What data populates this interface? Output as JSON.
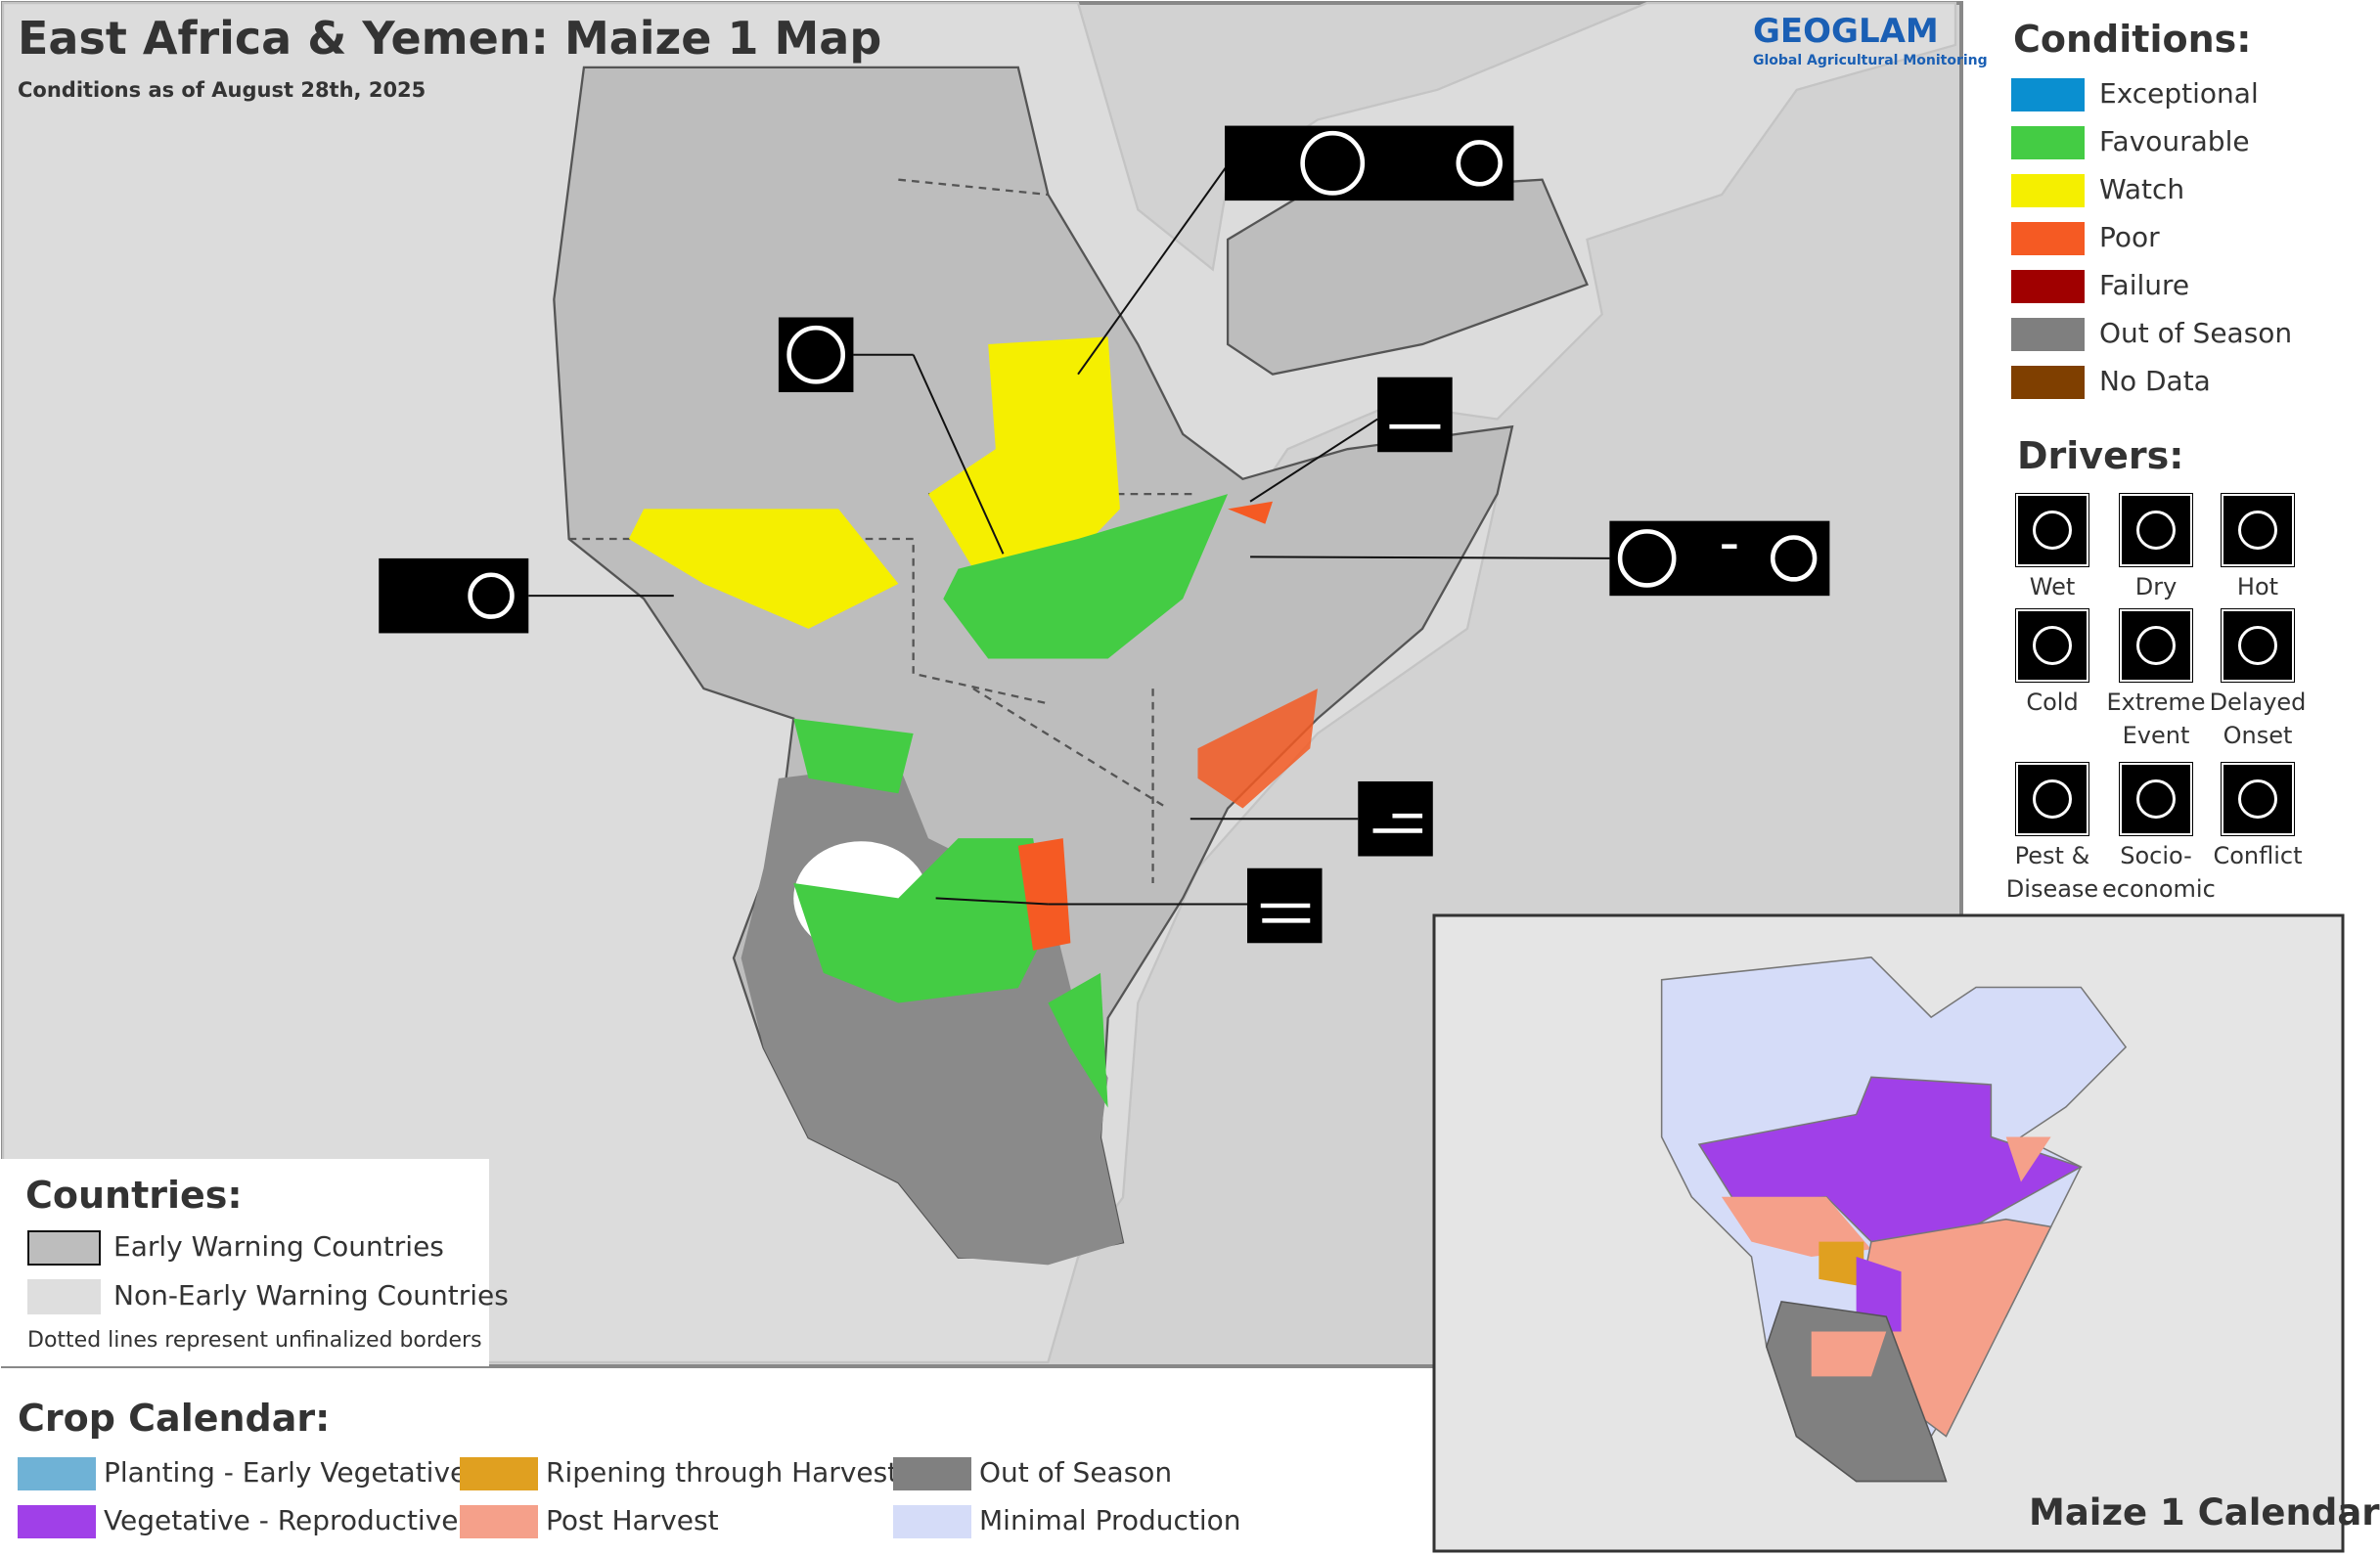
{
  "title": "East Africa & Yemen: Maize 1 Map",
  "subtitle": "Conditions as of August 28th, 2025",
  "logo": {
    "name": "GEOGLAM",
    "tagline": "Global Agricultural Monitoring"
  },
  "conditions": {
    "heading": "Conditions:",
    "items": [
      {
        "label": "Exceptional",
        "color": "#0a8fd0"
      },
      {
        "label": "Favourable",
        "color": "#44cc44"
      },
      {
        "label": "Watch",
        "color": "#f5ef00"
      },
      {
        "label": "Poor",
        "color": "#f55a23"
      },
      {
        "label": "Failure",
        "color": "#a00000"
      },
      {
        "label": "Out of Season",
        "color": "#7f7f7f"
      },
      {
        "label": "No Data",
        "color": "#7f3f00"
      }
    ]
  },
  "drivers": {
    "heading": "Drivers:",
    "items": [
      {
        "label": "Wet"
      },
      {
        "label": "Dry"
      },
      {
        "label": "Hot"
      },
      {
        "label": "Cold"
      },
      {
        "label": "Extreme Event"
      },
      {
        "label": "Delayed Onset"
      },
      {
        "label": "Pest & Disease"
      },
      {
        "label": "Socio-economic"
      },
      {
        "label": "Conflict"
      }
    ]
  },
  "countries": {
    "heading": "Countries:",
    "items": [
      {
        "label": "Early Warning Countries",
        "color": "#bdbdbd"
      },
      {
        "label": "Non-Early Warning Countries",
        "color": "#dedede"
      }
    ],
    "note": "Dotted lines represent unfinalized borders"
  },
  "crop_calendar": {
    "heading": "Crop Calendar:",
    "items": [
      {
        "label": "Planting - Early Vegetative",
        "color": "#6fb2d6"
      },
      {
        "label": "Vegetative - Reproductive",
        "color": "#a040e8"
      },
      {
        "label": "Ripening through Harvest",
        "color": "#e0a020"
      },
      {
        "label": "Post Harvest",
        "color": "#f5a08a"
      },
      {
        "label": "Out of Season",
        "color": "#808080"
      },
      {
        "label": "Minimal Production",
        "color": "#d5dcf8"
      }
    ]
  },
  "inset": {
    "title": "Maize 1 Calendar"
  }
}
